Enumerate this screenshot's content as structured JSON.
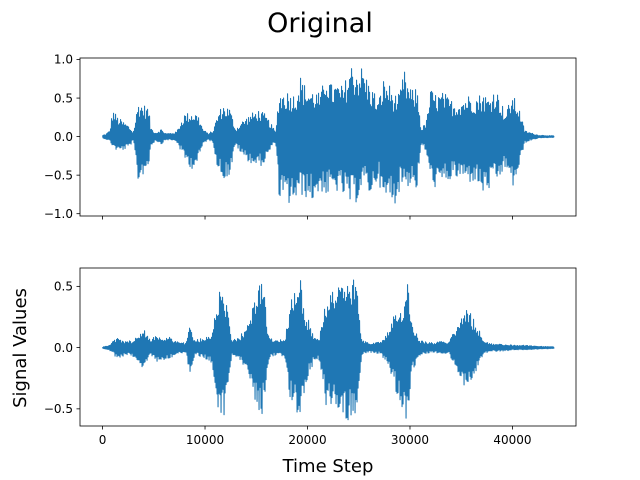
{
  "chart_data": {
    "type": "line",
    "title": "Original",
    "xlabel": "Time Step",
    "ylabel": "Signal Values",
    "sharex": true,
    "xlim": [
      -2200,
      46200
    ],
    "xticks": [
      0,
      10000,
      20000,
      30000,
      40000
    ],
    "xtick_labels": [
      "0",
      "10000",
      "20000",
      "30000",
      "40000"
    ],
    "color": "#1f77b4",
    "subplots": [
      {
        "name": "top",
        "ylim": [
          -1.03,
          1.02
        ],
        "yticks": [
          1.0,
          0.5,
          0.0,
          -0.5,
          -1.0
        ],
        "ytick_labels": [
          "1.0",
          "0.5",
          "0.0",
          "−0.5",
          "−1.0"
        ],
        "show_xtick_labels": false,
        "x_start": 0,
        "x_end": 44100,
        "envelope": [
          [
            0,
            0.02,
            -0.02
          ],
          [
            300,
            0.03,
            -0.03
          ],
          [
            700,
            0.08,
            -0.06
          ],
          [
            1000,
            0.36,
            -0.13
          ],
          [
            1500,
            0.25,
            -0.2
          ],
          [
            2500,
            0.15,
            -0.15
          ],
          [
            3000,
            0.06,
            -0.06
          ],
          [
            3500,
            0.46,
            -0.62
          ],
          [
            4000,
            0.42,
            -0.48
          ],
          [
            4500,
            0.38,
            -0.4
          ],
          [
            4700,
            0.12,
            -0.12
          ],
          [
            5200,
            0.05,
            -0.05
          ],
          [
            5700,
            0.1,
            -0.1
          ],
          [
            6200,
            0.04,
            -0.04
          ],
          [
            6800,
            0.05,
            -0.05
          ],
          [
            7200,
            0.06,
            -0.06
          ],
          [
            8000,
            0.3,
            -0.3
          ],
          [
            8700,
            0.32,
            -0.42
          ],
          [
            9300,
            0.3,
            -0.35
          ],
          [
            9800,
            0.1,
            -0.1
          ],
          [
            10300,
            0.04,
            -0.04
          ],
          [
            10800,
            0.08,
            -0.08
          ],
          [
            11200,
            0.28,
            -0.4
          ],
          [
            11700,
            0.42,
            -0.55
          ],
          [
            12400,
            0.38,
            -0.52
          ],
          [
            13000,
            0.1,
            -0.1
          ],
          [
            13600,
            0.2,
            -0.25
          ],
          [
            14500,
            0.3,
            -0.35
          ],
          [
            15200,
            0.35,
            -0.4
          ],
          [
            15800,
            0.3,
            -0.35
          ],
          [
            16300,
            0.2,
            -0.2
          ],
          [
            16900,
            0.06,
            -0.06
          ],
          [
            17200,
            0.58,
            -0.8
          ],
          [
            18000,
            0.6,
            -0.9
          ],
          [
            18800,
            0.55,
            -0.85
          ],
          [
            19300,
            0.8,
            -0.8
          ],
          [
            19600,
            0.7,
            -0.75
          ],
          [
            20200,
            0.62,
            -0.85
          ],
          [
            20800,
            0.6,
            -0.82
          ],
          [
            21300,
            0.55,
            -0.7
          ],
          [
            21800,
            0.9,
            -0.78
          ],
          [
            22300,
            0.68,
            -0.75
          ],
          [
            22900,
            0.7,
            -0.72
          ],
          [
            23500,
            0.65,
            -0.78
          ],
          [
            24200,
            0.96,
            -0.9
          ],
          [
            24800,
            0.9,
            -0.85
          ],
          [
            25400,
            0.92,
            -0.62
          ],
          [
            26000,
            0.7,
            -0.75
          ],
          [
            26500,
            0.6,
            -0.72
          ],
          [
            26900,
            0.45,
            -0.5
          ],
          [
            27400,
            0.75,
            -0.94
          ],
          [
            27900,
            0.7,
            -0.8
          ],
          [
            28500,
            0.55,
            -0.88
          ],
          [
            29000,
            0.55,
            -0.7
          ],
          [
            29400,
            0.88,
            -0.6
          ],
          [
            29800,
            0.7,
            -0.65
          ],
          [
            30200,
            0.6,
            -0.6
          ],
          [
            30700,
            0.65,
            -0.7
          ],
          [
            31100,
            0.1,
            -0.1
          ],
          [
            31600,
            0.2,
            -0.2
          ],
          [
            32000,
            0.62,
            -0.6
          ],
          [
            32600,
            0.55,
            -0.68
          ],
          [
            33300,
            0.58,
            -0.62
          ],
          [
            33800,
            0.5,
            -0.58
          ],
          [
            34400,
            0.45,
            -0.55
          ],
          [
            35100,
            0.5,
            -0.55
          ],
          [
            35800,
            0.55,
            -0.6
          ],
          [
            36400,
            0.52,
            -0.58
          ],
          [
            37100,
            0.58,
            -0.75
          ],
          [
            37700,
            0.5,
            -0.7
          ],
          [
            38300,
            0.65,
            -0.6
          ],
          [
            38800,
            0.5,
            -0.55
          ],
          [
            39300,
            0.3,
            -0.4
          ],
          [
            40000,
            0.55,
            -0.68
          ],
          [
            40600,
            0.4,
            -0.45
          ],
          [
            41200,
            0.08,
            -0.08
          ],
          [
            41800,
            0.05,
            -0.05
          ],
          [
            42500,
            0.02,
            -0.02
          ],
          [
            43200,
            0.015,
            -0.015
          ],
          [
            44100,
            0.01,
            -0.01
          ]
        ]
      },
      {
        "name": "bottom",
        "ylim": [
          -0.64,
          0.65
        ],
        "yticks": [
          0.5,
          0.0,
          -0.5
        ],
        "ytick_labels": [
          "0.5",
          "0.0",
          "−0.5"
        ],
        "show_xtick_labels": true,
        "x_start": 0,
        "x_end": 44100,
        "envelope": [
          [
            0,
            0.005,
            -0.005
          ],
          [
            600,
            0.02,
            -0.02
          ],
          [
            1000,
            0.05,
            -0.05
          ],
          [
            1500,
            0.08,
            -0.1
          ],
          [
            2200,
            0.05,
            -0.06
          ],
          [
            3000,
            0.06,
            -0.08
          ],
          [
            3500,
            0.12,
            -0.14
          ],
          [
            4100,
            0.15,
            -0.17
          ],
          [
            4700,
            0.05,
            -0.05
          ],
          [
            5200,
            0.12,
            -0.12
          ],
          [
            5800,
            0.08,
            -0.1
          ],
          [
            6500,
            0.09,
            -0.09
          ],
          [
            7300,
            0.05,
            -0.05
          ],
          [
            8100,
            0.04,
            -0.04
          ],
          [
            8500,
            0.18,
            -0.22
          ],
          [
            9000,
            0.06,
            -0.06
          ],
          [
            9800,
            0.08,
            -0.08
          ],
          [
            10600,
            0.1,
            -0.12
          ],
          [
            11200,
            0.4,
            -0.5
          ],
          [
            11500,
            0.58,
            -0.62
          ],
          [
            12000,
            0.42,
            -0.52
          ],
          [
            12600,
            0.06,
            -0.06
          ],
          [
            13300,
            0.08,
            -0.08
          ],
          [
            14200,
            0.2,
            -0.22
          ],
          [
            15100,
            0.55,
            -0.5
          ],
          [
            15600,
            0.58,
            -0.55
          ],
          [
            16200,
            0.1,
            -0.1
          ],
          [
            16900,
            0.06,
            -0.06
          ],
          [
            17800,
            0.08,
            -0.08
          ],
          [
            18400,
            0.42,
            -0.48
          ],
          [
            19300,
            0.62,
            -0.58
          ],
          [
            19800,
            0.3,
            -0.3
          ],
          [
            20600,
            0.1,
            -0.12
          ],
          [
            21200,
            0.1,
            -0.1
          ],
          [
            21800,
            0.42,
            -0.5
          ],
          [
            22400,
            0.48,
            -0.5
          ],
          [
            23200,
            0.56,
            -0.55
          ],
          [
            24100,
            0.56,
            -0.6
          ],
          [
            24700,
            0.58,
            -0.58
          ],
          [
            25300,
            0.06,
            -0.06
          ],
          [
            26200,
            0.04,
            -0.04
          ],
          [
            27000,
            0.05,
            -0.05
          ],
          [
            27800,
            0.12,
            -0.14
          ],
          [
            28600,
            0.3,
            -0.35
          ],
          [
            29300,
            0.36,
            -0.5
          ],
          [
            29700,
            0.57,
            -0.6
          ],
          [
            30200,
            0.2,
            -0.2
          ],
          [
            31000,
            0.06,
            -0.06
          ],
          [
            32000,
            0.04,
            -0.04
          ],
          [
            33000,
            0.05,
            -0.05
          ],
          [
            33800,
            0.05,
            -0.05
          ],
          [
            34500,
            0.18,
            -0.2
          ],
          [
            35200,
            0.33,
            -0.33
          ],
          [
            35800,
            0.3,
            -0.3
          ],
          [
            36500,
            0.2,
            -0.2
          ],
          [
            37200,
            0.05,
            -0.05
          ],
          [
            38000,
            0.03,
            -0.03
          ],
          [
            39000,
            0.03,
            -0.03
          ],
          [
            40000,
            0.02,
            -0.02
          ],
          [
            41000,
            0.02,
            -0.02
          ],
          [
            42000,
            0.015,
            -0.015
          ],
          [
            43000,
            0.01,
            -0.01
          ],
          [
            44100,
            0.008,
            -0.008
          ]
        ]
      }
    ]
  }
}
